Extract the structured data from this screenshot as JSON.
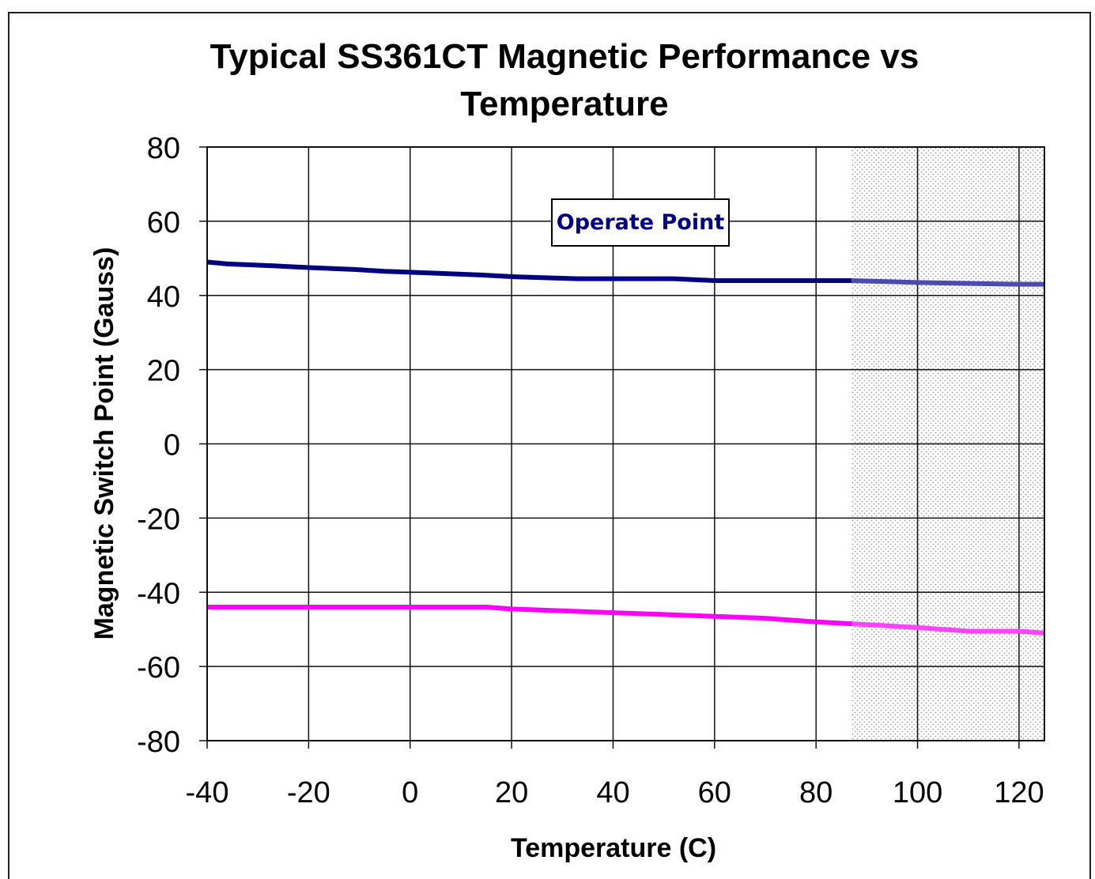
{
  "chart_data": {
    "type": "line",
    "title_lines": [
      "Typical SS361CT Magnetic Performance vs",
      "Temperature"
    ],
    "xlabel": "Temperature (C)",
    "ylabel": "Magnetic Switch Point (Gauss)",
    "xlim": [
      -40,
      125
    ],
    "ylim": [
      -80,
      80
    ],
    "x_ticks": [
      -40,
      -20,
      0,
      20,
      40,
      60,
      80,
      100,
      120
    ],
    "y_ticks": [
      80,
      60,
      40,
      20,
      0,
      -20,
      -40,
      -60,
      -80
    ],
    "grid": true,
    "shaded_region": {
      "x": [
        87,
        125
      ],
      "pattern": "dotted"
    },
    "annotation": {
      "text": "Operate Point",
      "series": "operate",
      "color": "#000080"
    },
    "series": [
      {
        "id": "operate",
        "color": "#000080",
        "shaded_color": "#4a4ab0",
        "x": [
          -40,
          -36,
          -27,
          -20,
          -11,
          -5,
          5,
          14,
          21,
          33,
          52,
          60,
          87,
          100,
          120,
          125
        ],
        "y": [
          49,
          48.5,
          48,
          47.5,
          47,
          46.5,
          46,
          45.5,
          45,
          44.5,
          44.5,
          44,
          44,
          43.5,
          43,
          43
        ]
      },
      {
        "id": "release",
        "color": "#ff00ff",
        "shaded_color": "#ff44ff",
        "x": [
          -40,
          -20,
          0,
          15,
          20,
          30,
          40,
          50,
          60,
          70,
          80,
          87,
          100,
          110,
          120,
          125
        ],
        "y": [
          -44,
          -44,
          -44,
          -44,
          -44.5,
          -45,
          -45.5,
          -46,
          -46.5,
          -47,
          -48,
          -48.5,
          -49.5,
          -50.5,
          -50.5,
          -51
        ]
      }
    ]
  }
}
